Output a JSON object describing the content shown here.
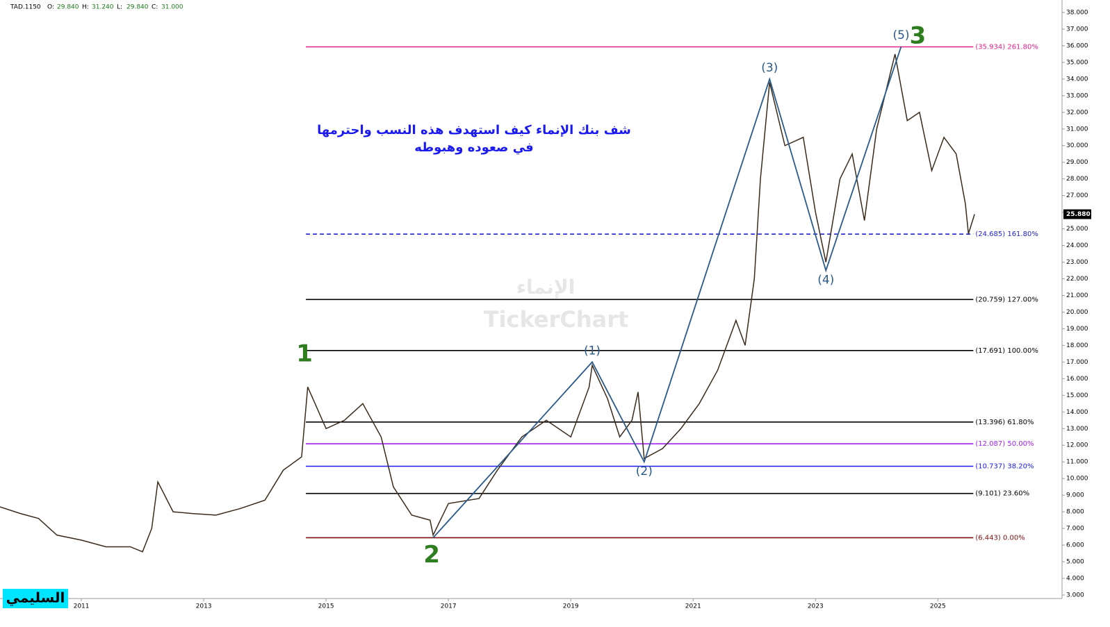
{
  "chart_data": {
    "type": "line",
    "header": {
      "symbol": "TAD.1150",
      "fields": [
        {
          "name": "O:",
          "value": "29.840"
        },
        {
          "name": "H:",
          "value": "31.240"
        },
        {
          "name": "L:",
          "value": "29.840"
        },
        {
          "name": "C:",
          "value": "31.000"
        }
      ]
    },
    "annotation": [
      "شف بنك الإنماء كيف استهدف هذه النسب واحترمها",
      "في صعوده وهبوطه"
    ],
    "watermark": [
      "الإنماء",
      "TickerChart"
    ],
    "author": "السليمي",
    "x": [
      2009.67,
      2010.0,
      2010.3,
      2010.6,
      2011.0,
      2011.4,
      2011.8,
      2012.0,
      2012.15,
      2012.25,
      2012.5,
      2012.8,
      2013.2,
      2013.6,
      2014.0,
      2014.3,
      2014.6,
      2014.7,
      2015.0,
      2015.3,
      2015.6,
      2015.9,
      2016.1,
      2016.4,
      2016.7,
      2016.75,
      2017.0,
      2017.5,
      2017.8,
      2018.2,
      2018.6,
      2019.0,
      2019.3,
      2019.35,
      2019.6,
      2019.8,
      2020.0,
      2020.1,
      2020.2,
      2020.5,
      2020.8,
      2021.1,
      2021.4,
      2021.7,
      2021.85,
      2022.0,
      2022.1,
      2022.25,
      2022.5,
      2022.8,
      2023.0,
      2023.17,
      2023.4,
      2023.6,
      2023.8,
      2024.0,
      2024.3,
      2024.5,
      2024.7,
      2024.9,
      2025.1,
      2025.3,
      2025.45,
      2025.5,
      2025.6
    ],
    "series": [
      {
        "name": "TAD.1150",
        "color": "#3a2a1a",
        "values": [
          8.3,
          7.9,
          7.6,
          6.6,
          6.3,
          5.9,
          5.9,
          5.6,
          7.0,
          9.8,
          8.0,
          7.9,
          7.8,
          8.2,
          8.7,
          10.5,
          11.3,
          15.5,
          13.0,
          13.5,
          14.5,
          12.5,
          9.5,
          7.8,
          7.5,
          6.6,
          8.5,
          8.8,
          10.5,
          12.5,
          13.5,
          12.5,
          15.5,
          16.8,
          14.8,
          12.5,
          13.5,
          15.2,
          11.2,
          11.8,
          13.0,
          14.5,
          16.5,
          19.5,
          18.0,
          22.0,
          28.0,
          33.8,
          30.0,
          30.5,
          26.0,
          23.0,
          28.0,
          29.5,
          25.5,
          31.0,
          35.5,
          31.5,
          32.0,
          28.5,
          30.5,
          29.5,
          26.5,
          24.7,
          25.88
        ]
      }
    ],
    "current_price": {
      "value": 25.88,
      "label": "25.880"
    },
    "fib_levels": [
      {
        "value": 35.934,
        "label": "(35.934) 261.80%",
        "color": "#e0218a",
        "dashed": false
      },
      {
        "value": 24.685,
        "label": "(24.685) 161.80%",
        "color": "#2222cc",
        "dashed": true
      },
      {
        "value": 20.759,
        "label": "(20.759) 127.00%",
        "color": "#000000",
        "dashed": false
      },
      {
        "value": 17.691,
        "label": "(17.691) 100.00%",
        "color": "#000000",
        "dashed": false
      },
      {
        "value": 13.396,
        "label": "(13.396) 61.80%",
        "color": "#000000",
        "dashed": false
      },
      {
        "value": 12.087,
        "label": "(12.087) 50.00%",
        "color": "#a020f0",
        "dashed": false
      },
      {
        "value": 10.737,
        "label": "(10.737) 38.20%",
        "color": "#1a1aee",
        "dashed": false
      },
      {
        "value": 9.101,
        "label": "(9.101) 23.60%",
        "color": "#000000",
        "dashed": false
      },
      {
        "value": 6.443,
        "label": "(6.443) 0.00%",
        "color": "#7a1010",
        "dashed": false
      }
    ],
    "fib_range": [
      2014.67,
      2025.58
    ],
    "waves": {
      "color": "#2a5a8a",
      "x": [
        2016.75,
        2019.35,
        2020.2,
        2022.25,
        2023.17,
        2024.4
      ],
      "values": [
        6.443,
        17.0,
        11.0,
        34.0,
        22.5,
        35.95
      ],
      "labels": [
        null,
        "(1)",
        "(2)",
        "(3)",
        "(4)",
        "(5)"
      ]
    },
    "degree_labels": [
      {
        "label": "1",
        "x": 2014.67,
        "y": 16.6
      },
      {
        "label": "2",
        "x": 2016.75,
        "y": 6.443
      },
      {
        "label": "3",
        "x": 2024.4,
        "y": 35.95
      }
    ],
    "xlim": [
      2009.67,
      2027.03
    ],
    "xticks": [
      2011,
      2013,
      2015,
      2017,
      2019,
      2021,
      2023,
      2025
    ],
    "ylim": [
      2.79,
      38.75
    ],
    "yticks": [
      {
        "value": 3,
        "label": "3.000"
      },
      {
        "value": 4,
        "label": "4.000"
      },
      {
        "value": 5,
        "label": "5.000"
      },
      {
        "value": 6,
        "label": "6.000"
      },
      {
        "value": 7,
        "label": "7.000"
      },
      {
        "value": 8,
        "label": "8.000"
      },
      {
        "value": 9,
        "label": "9.000"
      },
      {
        "value": 10,
        "label": "10.000"
      },
      {
        "value": 11,
        "label": "11.000"
      },
      {
        "value": 12,
        "label": "12.000"
      },
      {
        "value": 13,
        "label": "13.000"
      },
      {
        "value": 14,
        "label": "14.000"
      },
      {
        "value": 15,
        "label": "15.000"
      },
      {
        "value": 16,
        "label": "16.000"
      },
      {
        "value": 17,
        "label": "17.000"
      },
      {
        "value": 18,
        "label": "18.000"
      },
      {
        "value": 19,
        "label": "19.000"
      },
      {
        "value": 20,
        "label": "20.000"
      },
      {
        "value": 21,
        "label": "21.000"
      },
      {
        "value": 22,
        "label": "22.000"
      },
      {
        "value": 23,
        "label": "23.000"
      },
      {
        "value": 24,
        "label": "24.000"
      },
      {
        "value": 25,
        "label": "25.000"
      },
      {
        "value": 26,
        "label": "26.000"
      },
      {
        "value": 27,
        "label": "27.000"
      },
      {
        "value": 28,
        "label": "28.000"
      },
      {
        "value": 29,
        "label": "29.000"
      },
      {
        "value": 30,
        "label": "30.000"
      },
      {
        "value": 31,
        "label": "31.000"
      },
      {
        "value": 32,
        "label": "32.000"
      },
      {
        "value": 33,
        "label": "33.000"
      },
      {
        "value": 34,
        "label": "34.000"
      },
      {
        "value": 35,
        "label": "35.000"
      },
      {
        "value": 36,
        "label": "36.000"
      },
      {
        "value": 37,
        "label": "37.000"
      },
      {
        "value": 38,
        "label": "38.000"
      }
    ]
  }
}
